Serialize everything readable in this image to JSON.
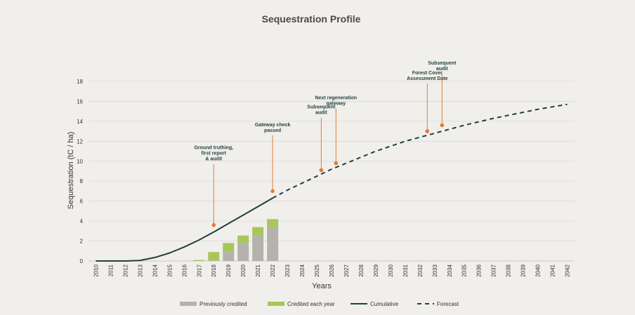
{
  "chart_data": {
    "type": "bar",
    "title": "Sequestration Profile",
    "xlabel": "Years",
    "ylabel": "Sequestration (tC / ha)",
    "ylim": [
      0,
      18
    ],
    "yticks": [
      0,
      2,
      4,
      6,
      8,
      10,
      12,
      14,
      16,
      18
    ],
    "categories": [
      "2010",
      "2011",
      "2012",
      "2013",
      "2014",
      "2015",
      "2016",
      "2017",
      "2018",
      "2019",
      "2020",
      "2021",
      "2022",
      "2023",
      "2024",
      "2025",
      "2026",
      "2027",
      "2028",
      "2029",
      "2030",
      "2031",
      "2032",
      "2033",
      "2034",
      "2035",
      "2036",
      "2037",
      "2038",
      "2039",
      "2040",
      "2041",
      "2042"
    ],
    "grid": true,
    "legend_position": "bottom",
    "series": [
      {
        "name": "Previously credited",
        "kind": "bar",
        "color": "#b5b2ae",
        "x": [
          "2017",
          "2018",
          "2019",
          "2020",
          "2021",
          "2022"
        ],
        "values": [
          0,
          0.05,
          0.9,
          1.8,
          2.5,
          3.4
        ]
      },
      {
        "name": "Credited each year",
        "kind": "bar",
        "color": "#a8c65a",
        "x": [
          "2017",
          "2018",
          "2019",
          "2020",
          "2021",
          "2022"
        ],
        "values": [
          0.1,
          0.85,
          0.9,
          0.75,
          0.9,
          0.8
        ]
      },
      {
        "name": "Cumulative",
        "kind": "line",
        "color": "#1f3f3f",
        "x": [
          2010,
          2011,
          2012,
          2013,
          2014,
          2015,
          2016,
          2017,
          2018,
          2019,
          2020,
          2021,
          2022
        ],
        "values": [
          0,
          0,
          0,
          0.05,
          0.35,
          0.8,
          1.4,
          2.1,
          2.9,
          3.75,
          4.6,
          5.45,
          6.3
        ]
      },
      {
        "name": "Forecast",
        "kind": "dashed-line",
        "color": "#1f3f3f",
        "x": [
          2022,
          2023,
          2024,
          2025,
          2026,
          2027,
          2028,
          2029,
          2030,
          2031,
          2032,
          2033,
          2034,
          2035,
          2036,
          2037,
          2038,
          2039,
          2040,
          2041,
          2042
        ],
        "values": [
          6.3,
          7.1,
          7.8,
          8.5,
          9.2,
          9.8,
          10.4,
          11.0,
          11.5,
          12.0,
          12.4,
          12.8,
          13.2,
          13.6,
          13.95,
          14.3,
          14.6,
          14.9,
          15.2,
          15.45,
          15.7
        ]
      }
    ],
    "annotations": [
      {
        "lines": [
          "Ground truthing,",
          "first report",
          "& audit"
        ],
        "x": 2018,
        "y": 3.6,
        "label_y": 11.2
      },
      {
        "lines": [
          "Gateway check",
          "passed"
        ],
        "x": 2022,
        "y": 7.0,
        "label_y": 13.5
      },
      {
        "lines": [
          "Subsequent",
          "audit"
        ],
        "x": 2025.3,
        "y": 9.1,
        "label_y": 15.3
      },
      {
        "lines": [
          "Next regeneration",
          "gateway"
        ],
        "x": 2026.3,
        "y": 9.8,
        "label_y": 16.2
      },
      {
        "lines": [
          "Forest Cover",
          "Assessment Date"
        ],
        "x": 2032.5,
        "y": 13.0,
        "label_y": 18.7
      },
      {
        "lines": [
          "Subsequent",
          "audit"
        ],
        "x": 2033.5,
        "y": 13.6,
        "label_y": 19.7
      }
    ],
    "annotation_color": "#e07b39"
  }
}
